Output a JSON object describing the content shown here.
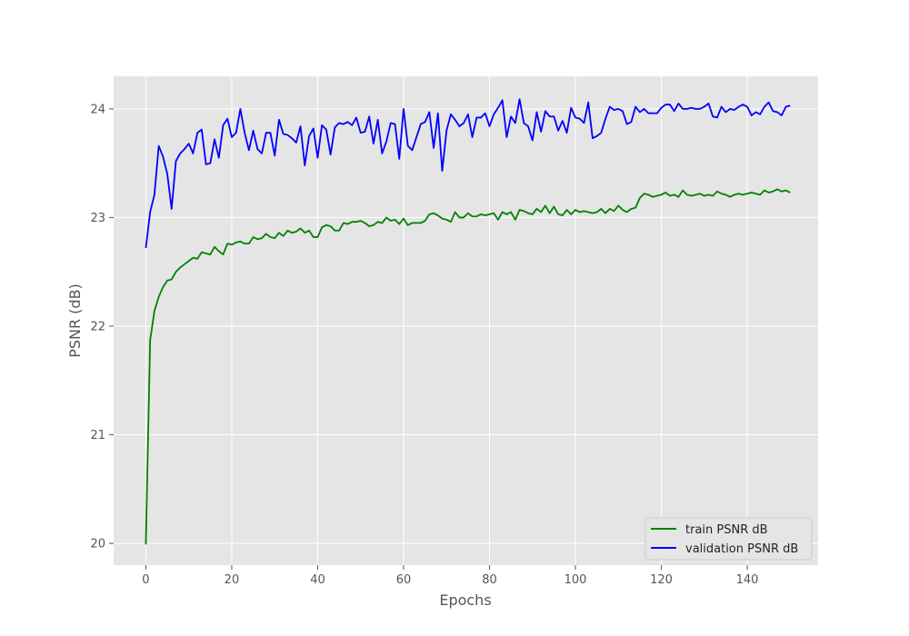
{
  "chart_data": {
    "type": "line",
    "xlabel": "Epochs",
    "ylabel": "PSNR (dB)",
    "xlim": [
      -7.5,
      156.5
    ],
    "ylim": [
      19.8,
      24.3
    ],
    "xticks": [
      0,
      20,
      40,
      60,
      80,
      100,
      120,
      140
    ],
    "yticks": [
      20,
      21,
      22,
      23,
      24
    ],
    "grid": true,
    "legend": "bottom-right",
    "series": [
      {
        "name": "train PSNR dB",
        "color": "#008000",
        "values": [
          19.99,
          21.87,
          22.14,
          22.27,
          22.36,
          22.42,
          22.43,
          22.5,
          22.54,
          22.57,
          22.6,
          22.63,
          22.62,
          22.68,
          22.67,
          22.66,
          22.73,
          22.69,
          22.66,
          22.76,
          22.75,
          22.77,
          22.78,
          22.76,
          22.76,
          22.82,
          22.8,
          22.81,
          22.85,
          22.82,
          22.81,
          22.86,
          22.83,
          22.88,
          22.86,
          22.87,
          22.9,
          22.86,
          22.88,
          22.82,
          22.82,
          22.91,
          22.93,
          22.92,
          22.88,
          22.88,
          22.95,
          22.94,
          22.96,
          22.96,
          22.97,
          22.95,
          22.92,
          22.93,
          22.96,
          22.95,
          23.0,
          22.97,
          22.98,
          22.94,
          22.99,
          22.93,
          22.95,
          22.95,
          22.95,
          22.97,
          23.03,
          23.04,
          23.02,
          22.99,
          22.98,
          22.96,
          23.05,
          23.0,
          23.0,
          23.04,
          23.01,
          23.01,
          23.03,
          23.02,
          23.03,
          23.04,
          22.98,
          23.05,
          23.03,
          23.05,
          22.98,
          23.07,
          23.06,
          23.04,
          23.03,
          23.08,
          23.05,
          23.11,
          23.04,
          23.1,
          23.03,
          23.02,
          23.07,
          23.03,
          23.07,
          23.05,
          23.06,
          23.05,
          23.04,
          23.05,
          23.08,
          23.04,
          23.08,
          23.06,
          23.11,
          23.07,
          23.05,
          23.08,
          23.09,
          23.18,
          23.22,
          23.21,
          23.19,
          23.2,
          23.21,
          23.23,
          23.2,
          23.21,
          23.19,
          23.25,
          23.21,
          23.2,
          23.21,
          23.22,
          23.2,
          23.21,
          23.2,
          23.24,
          23.22,
          23.21,
          23.19,
          23.21,
          23.22,
          23.21,
          23.22,
          23.23,
          23.22,
          23.21,
          23.25,
          23.23,
          23.24,
          23.26,
          23.24,
          23.25,
          23.23
        ]
      },
      {
        "name": "validation PSNR dB",
        "color": "#0000ff",
        "values": [
          22.72,
          23.05,
          23.21,
          23.66,
          23.56,
          23.4,
          23.08,
          23.52,
          23.59,
          23.63,
          23.68,
          23.59,
          23.78,
          23.81,
          23.49,
          23.5,
          23.72,
          23.55,
          23.85,
          23.91,
          23.74,
          23.78,
          24.0,
          23.78,
          23.62,
          23.8,
          23.63,
          23.59,
          23.78,
          23.78,
          23.57,
          23.9,
          23.77,
          23.76,
          23.73,
          23.69,
          23.84,
          23.48,
          23.75,
          23.82,
          23.55,
          23.85,
          23.81,
          23.58,
          23.83,
          23.87,
          23.86,
          23.88,
          23.85,
          23.92,
          23.78,
          23.79,
          23.93,
          23.68,
          23.9,
          23.59,
          23.7,
          23.87,
          23.86,
          23.54,
          24.0,
          23.66,
          23.62,
          23.74,
          23.86,
          23.88,
          23.97,
          23.64,
          23.96,
          23.43,
          23.8,
          23.95,
          23.9,
          23.84,
          23.87,
          23.95,
          23.74,
          23.92,
          23.92,
          23.96,
          23.84,
          23.95,
          24.01,
          24.08,
          23.74,
          23.93,
          23.87,
          24.09,
          23.87,
          23.84,
          23.71,
          23.97,
          23.79,
          23.98,
          23.93,
          23.93,
          23.8,
          23.89,
          23.78,
          24.01,
          23.92,
          23.91,
          23.87,
          24.06,
          23.73,
          23.75,
          23.78,
          23.91,
          24.02,
          23.99,
          24.0,
          23.98,
          23.86,
          23.88,
          24.02,
          23.97,
          24.0,
          23.96,
          23.96,
          23.96,
          24.01,
          24.04,
          24.04,
          23.98,
          24.05,
          24.0,
          24.0,
          24.01,
          24.0,
          24.0,
          24.02,
          24.05,
          23.93,
          23.92,
          24.02,
          23.97,
          24.0,
          23.99,
          24.02,
          24.04,
          24.02,
          23.94,
          23.97,
          23.95,
          24.02,
          24.06,
          23.98,
          23.97,
          23.94,
          24.02,
          24.03
        ]
      }
    ]
  }
}
